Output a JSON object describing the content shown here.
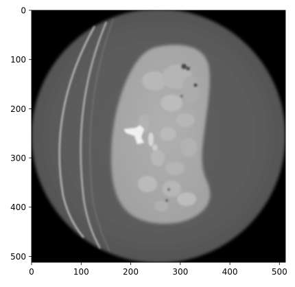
{
  "figure": {
    "image_description_source": "grayscale CT axial slice displayed with imshow-style axes",
    "x_axis": {
      "ticks": [
        "0",
        "100",
        "200",
        "300",
        "400",
        "500"
      ],
      "range": [
        0,
        512
      ]
    },
    "y_axis": {
      "ticks": [
        "0",
        "100",
        "200",
        "300",
        "400",
        "500"
      ],
      "range": [
        0,
        512
      ],
      "inverted": true
    },
    "colors": {
      "background": "#000000",
      "field_of_view": "#5c5c5c",
      "body_tissue": "#a8a8a8",
      "bone": "#f2f2f2",
      "table_line": "#d0d0d0"
    }
  }
}
